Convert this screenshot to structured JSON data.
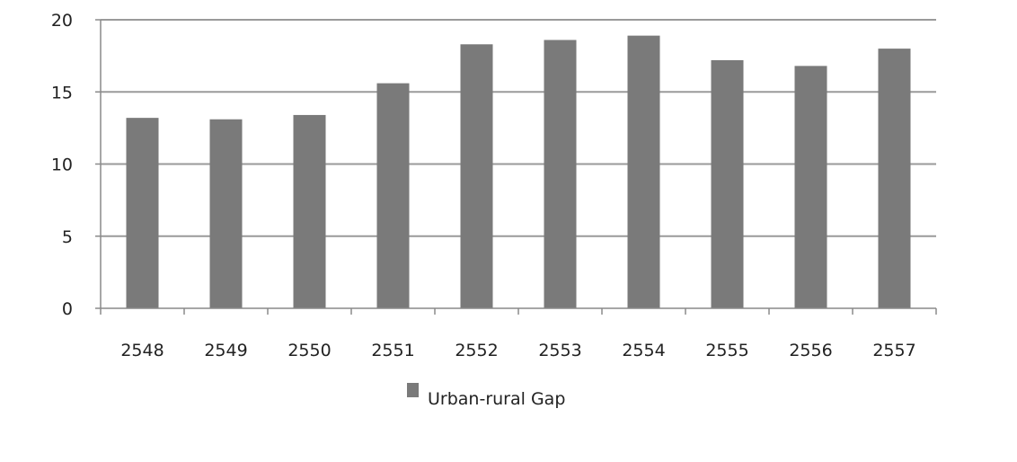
{
  "chart_data": {
    "type": "bar",
    "categories": [
      "2548",
      "2549",
      "2550",
      "2551",
      "2552",
      "2553",
      "2554",
      "2555",
      "2556",
      "2557"
    ],
    "series": [
      {
        "name": "Urban-rural Gap",
        "values": [
          13.2,
          13.1,
          13.4,
          15.6,
          18.3,
          18.6,
          18.9,
          17.2,
          16.8,
          18.0
        ],
        "color": "#7a7a7a"
      }
    ],
    "y_ticks": [
      "0",
      "5",
      "10",
      "15",
      "20"
    ],
    "ylim": [
      0,
      20
    ],
    "grid": true,
    "legend_position": "bottom",
    "title": "",
    "xlabel": "",
    "ylabel": ""
  }
}
